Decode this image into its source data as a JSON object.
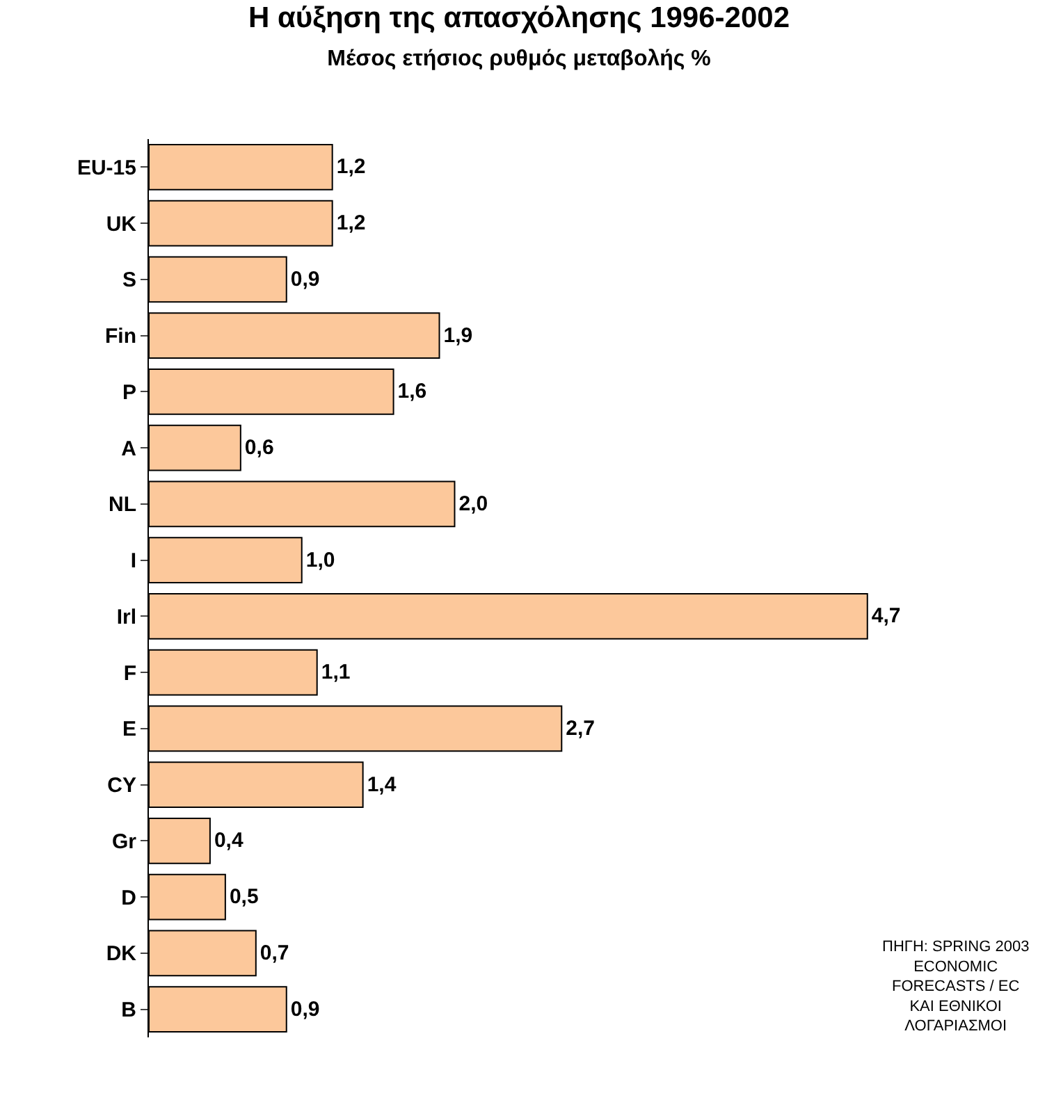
{
  "chart_data": {
    "type": "bar",
    "orientation": "horizontal",
    "title": "Η αύξηση της απασχόλησης 1996-2002",
    "subtitle": "Μέσος ετήσιος ρυθμός μεταβολής %",
    "categories": [
      "EU-15",
      "UK",
      "S",
      "Fin",
      "P",
      "A",
      "NL",
      "I",
      "Irl",
      "F",
      "E",
      "CY",
      "Gr",
      "D",
      "DK",
      "B"
    ],
    "values": [
      1.2,
      1.2,
      0.9,
      1.9,
      1.6,
      0.6,
      2.0,
      1.0,
      4.7,
      1.1,
      2.7,
      1.4,
      0.4,
      0.5,
      0.7,
      0.9
    ],
    "value_labels": [
      "1,2",
      "1,2",
      "0,9",
      "1,9",
      "1,6",
      "0,6",
      "2,0",
      "1,0",
      "4,7",
      "1,1",
      "2,7",
      "1,4",
      "0,4",
      "0,5",
      "0,7",
      "0,9"
    ],
    "color": "#fcc89b",
    "annotations": [
      "ΠΗΓΗ: SPRING 2003\nECONOMIC\nFORECASTS / EC\nΚΑΙ ΕΘΝΙΚΟΙ\nΛΟΓΑΡΙΑΣΜΟΙ"
    ]
  }
}
